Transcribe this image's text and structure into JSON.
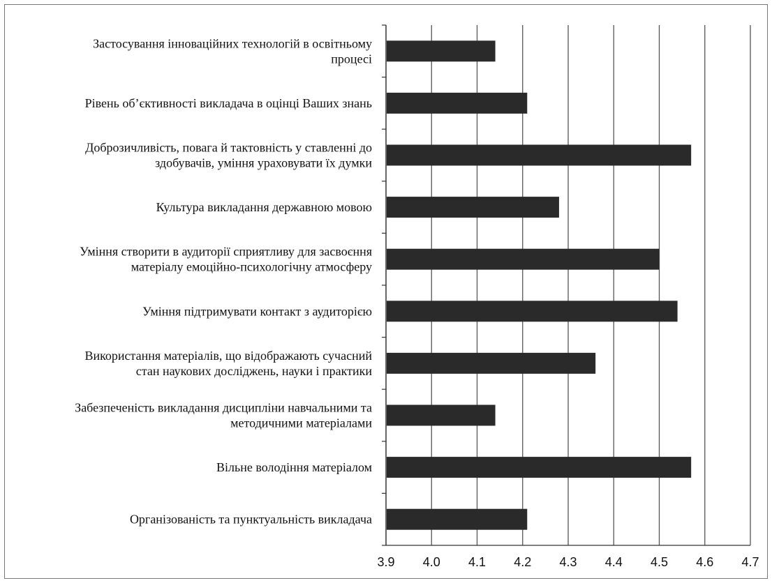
{
  "chart_data": {
    "type": "bar",
    "orientation": "horizontal",
    "title": "",
    "xlabel": "",
    "ylabel": "",
    "xlim": [
      3.9,
      4.7
    ],
    "x_ticks": [
      3.9,
      4.0,
      4.1,
      4.2,
      4.3,
      4.4,
      4.5,
      4.6,
      4.7
    ],
    "tick_labels": [
      "3.9",
      "4.0",
      "4.1",
      "4.2",
      "4.3",
      "4.4",
      "4.5",
      "4.6",
      "4.7"
    ],
    "grid": "vertical",
    "legend": "none",
    "bar_color": "#2a2a2a",
    "categories": [
      [
        "Застосування інноваційних технологій в освітньому",
        "процесі"
      ],
      [
        "Рівень об’єктивності викладача в оцінці Ваших знань"
      ],
      [
        "Доброзичливість, повага й тактовність у ставленні до",
        "здобувачів, уміння ураховувати їх думки"
      ],
      [
        "Культура викладання державною мовою"
      ],
      [
        "Уміння створити в аудиторії сприятливу для засвоєння",
        "матеріалу емоційно-психологічну атмосферу"
      ],
      [
        "Уміння підтримувати контакт з аудиторією"
      ],
      [
        "Використання матеріалів, що відображають сучасний",
        "стан наукових досліджень, науки і практики"
      ],
      [
        "Забезпеченість викладання дисципліни навчальними та",
        "методичними матеріалами"
      ],
      [
        "Вільне володіння матеріалом"
      ],
      [
        "Організованість та пунктуальність викладача"
      ]
    ],
    "values": [
      4.14,
      4.21,
      4.57,
      4.28,
      4.5,
      4.54,
      4.36,
      4.14,
      4.57,
      4.21
    ]
  }
}
